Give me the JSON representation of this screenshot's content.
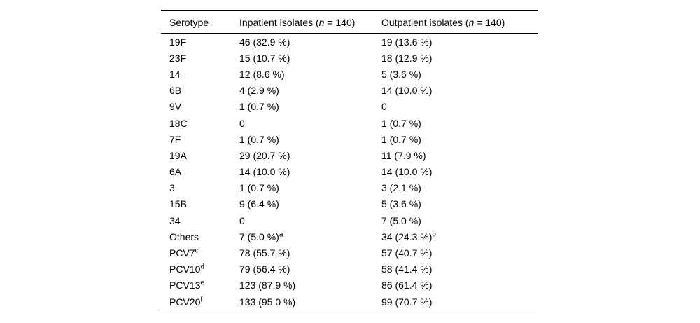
{
  "table": {
    "header": {
      "serotype": "Serotype",
      "inpatient_prefix": "Inpatient isolates (",
      "outpatient_prefix": "Outpatient isolates (",
      "n_symbol": "n",
      "count_suffix": " = 140)"
    },
    "rows": [
      {
        "serotype": "19F",
        "serotype_sup": "",
        "inpatient": "46 (32.9 %)",
        "inpatient_sup": "",
        "outpatient": "19 (13.6 %)",
        "outpatient_sup": ""
      },
      {
        "serotype": "23F",
        "serotype_sup": "",
        "inpatient": "15 (10.7 %)",
        "inpatient_sup": "",
        "outpatient": "18 (12.9 %)",
        "outpatient_sup": ""
      },
      {
        "serotype": "14",
        "serotype_sup": "",
        "inpatient": "12 (8.6 %)",
        "inpatient_sup": "",
        "outpatient": "5 (3.6 %)",
        "outpatient_sup": ""
      },
      {
        "serotype": "6B",
        "serotype_sup": "",
        "inpatient": "4 (2.9 %)",
        "inpatient_sup": "",
        "outpatient": "14 (10.0 %)",
        "outpatient_sup": ""
      },
      {
        "serotype": "9V",
        "serotype_sup": "",
        "inpatient": "1 (0.7 %)",
        "inpatient_sup": "",
        "outpatient": "0",
        "outpatient_sup": ""
      },
      {
        "serotype": "18C",
        "serotype_sup": "",
        "inpatient": "0",
        "inpatient_sup": "",
        "outpatient": "1 (0.7 %)",
        "outpatient_sup": ""
      },
      {
        "serotype": "7F",
        "serotype_sup": "",
        "inpatient": "1 (0.7 %)",
        "inpatient_sup": "",
        "outpatient": "1 (0.7 %)",
        "outpatient_sup": ""
      },
      {
        "serotype": "19A",
        "serotype_sup": "",
        "inpatient": "29 (20.7 %)",
        "inpatient_sup": "",
        "outpatient": "11 (7.9 %)",
        "outpatient_sup": ""
      },
      {
        "serotype": "6A",
        "serotype_sup": "",
        "inpatient": "14 (10.0 %)",
        "inpatient_sup": "",
        "outpatient": "14 (10.0 %)",
        "outpatient_sup": ""
      },
      {
        "serotype": "3",
        "serotype_sup": "",
        "inpatient": "1 (0.7 %)",
        "inpatient_sup": "",
        "outpatient": "3 (2.1 %)",
        "outpatient_sup": ""
      },
      {
        "serotype": "15B",
        "serotype_sup": "",
        "inpatient": "9 (6.4 %)",
        "inpatient_sup": "",
        "outpatient": "5 (3.6 %)",
        "outpatient_sup": ""
      },
      {
        "serotype": "34",
        "serotype_sup": "",
        "inpatient": "0",
        "inpatient_sup": "",
        "outpatient": "7 (5.0 %)",
        "outpatient_sup": ""
      },
      {
        "serotype": "Others",
        "serotype_sup": "",
        "inpatient": "7 (5.0 %)",
        "inpatient_sup": "a",
        "outpatient": "34 (24.3 %)",
        "outpatient_sup": "b"
      },
      {
        "serotype": "PCV7",
        "serotype_sup": "c",
        "inpatient": "78 (55.7 %)",
        "inpatient_sup": "",
        "outpatient": "57 (40.7 %)",
        "outpatient_sup": ""
      },
      {
        "serotype": "PCV10",
        "serotype_sup": "d",
        "inpatient": "79 (56.4 %)",
        "inpatient_sup": "",
        "outpatient": "58 (41.4 %)",
        "outpatient_sup": ""
      },
      {
        "serotype": "PCV13",
        "serotype_sup": "e",
        "inpatient": "123 (87.9 %)",
        "inpatient_sup": "",
        "outpatient": "86 (61.4 %)",
        "outpatient_sup": ""
      },
      {
        "serotype": "PCV20",
        "serotype_sup": "f",
        "inpatient": "133 (95.0 %)",
        "inpatient_sup": "",
        "outpatient": "99 (70.7 %)",
        "outpatient_sup": ""
      }
    ]
  }
}
